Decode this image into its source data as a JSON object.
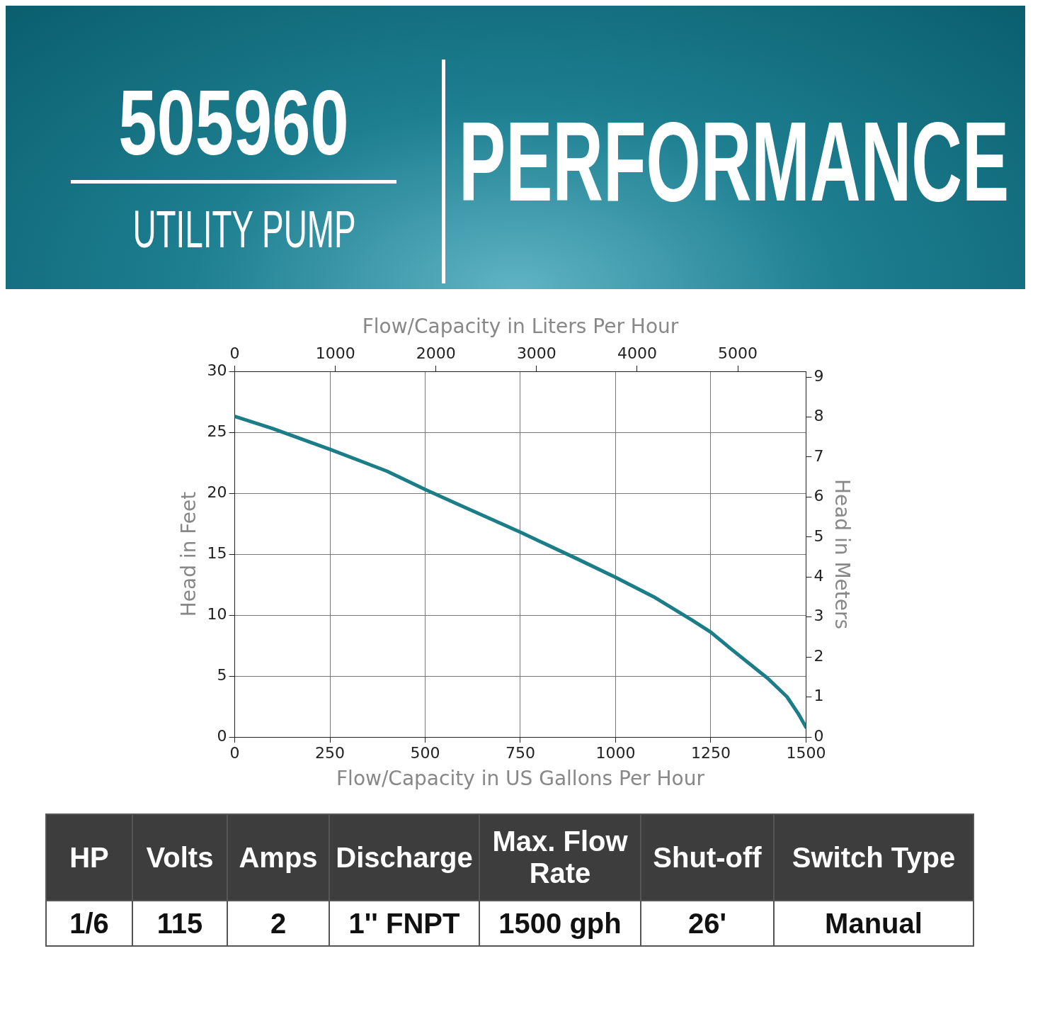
{
  "chart_data": [
    {
      "type": "line",
      "title": "505960",
      "subtitle": "UTILITY PUMP",
      "annotations": [
        "PERFORMANCE"
      ],
      "xlabel": "Flow/Capacity in US Gallons Per Hour",
      "x2label": "Flow/Capacity in Liters Per Hour",
      "ylabel": "Head in Feet",
      "y2label": "Head in Meters",
      "x": [
        0,
        100,
        250,
        400,
        500,
        600,
        750,
        900,
        1000,
        1100,
        1200,
        1250,
        1300,
        1400,
        1450,
        1480,
        1500
      ],
      "series": [
        {
          "color": "#1a7d87",
          "values": [
            26.3,
            25.3,
            23.6,
            21.8,
            20.3,
            18.9,
            16.8,
            14.6,
            13.1,
            11.5,
            9.6,
            8.6,
            7.3,
            4.8,
            3.3,
            1.9,
            0.8
          ]
        }
      ],
      "xlim": [
        0,
        1500
      ],
      "xticks": [
        0,
        250,
        500,
        750,
        1000,
        1250,
        1500
      ],
      "x2lim": [
        0,
        5678
      ],
      "x2ticks": [
        0,
        1000,
        2000,
        3000,
        4000,
        5000
      ],
      "ylim": [
        0,
        30
      ],
      "yticks": [
        0,
        5,
        10,
        15,
        20,
        25,
        30
      ],
      "y2lim": [
        0,
        9.144
      ],
      "y2ticks": [
        0,
        1,
        2,
        3,
        4,
        5,
        6,
        7,
        8,
        9
      ],
      "grid": true
    },
    {
      "type": "other",
      "categories": [
        "HP",
        "Volts",
        "Amps",
        "Discharge",
        "Max. Flow Rate",
        "Shut-off",
        "Switch Type"
      ],
      "value_labels": [
        "1/6",
        "115",
        "2",
        "1'' FNPT",
        "1500 gph",
        "26'",
        "Manual"
      ]
    }
  ]
}
